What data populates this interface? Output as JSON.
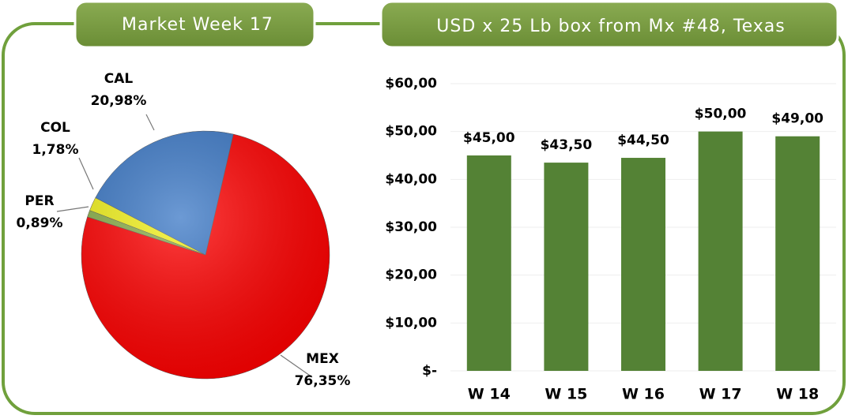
{
  "chart_data": [
    {
      "type": "pie",
      "title": "Market Week 17",
      "categories": [
        "MEX",
        "PER",
        "COL",
        "CAL"
      ],
      "values": [
        76.35,
        0.89,
        1.78,
        20.98
      ],
      "value_labels": [
        "76,35%",
        "0,89%",
        "1,78%",
        "20,98%"
      ],
      "colors": [
        "#ff0000",
        "#8ab04a",
        "#f2f21a",
        "#3b78c6"
      ]
    },
    {
      "type": "bar",
      "title": "USD x 25 Lb box from Mx #48, Texas",
      "categories": [
        "W 14",
        "W 15",
        "W 16",
        "W 17",
        "W 18"
      ],
      "values": [
        45,
        43.5,
        44.5,
        50,
        49
      ],
      "value_labels": [
        "$45,00",
        "$43,50",
        "$44,50",
        "$50,00",
        "$49,00"
      ],
      "color": "#548235",
      "ylim": [
        0,
        60
      ],
      "yticks": [
        {
          "value": 0,
          "label": "$-"
        },
        {
          "value": 10,
          "label": "$10,00"
        },
        {
          "value": 20,
          "label": "$20,00"
        },
        {
          "value": 30,
          "label": "$30,00"
        },
        {
          "value": 40,
          "label": "$40,00"
        },
        {
          "value": 50,
          "label": "$50,00"
        },
        {
          "value": 60,
          "label": "$60,00"
        }
      ]
    }
  ]
}
